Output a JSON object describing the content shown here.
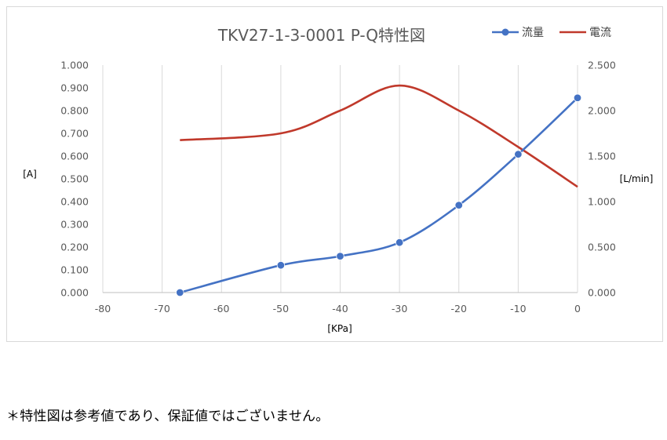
{
  "chart_data": {
    "type": "line",
    "title": "TKV27-1-3-0001 P-Q特性図",
    "xlabel": "[KPa]",
    "ylabel_left": "[A]",
    "ylabel_right": "[L/min]",
    "xlim": [
      -80,
      0
    ],
    "ylim_left": [
      0,
      1.0
    ],
    "ylim_right": [
      0,
      2.5
    ],
    "x_ticks": [
      "-80",
      "-70",
      "-60",
      "-50",
      "-40",
      "-30",
      "-20",
      "-10",
      "0"
    ],
    "y_ticks_left": [
      "0.000",
      "0.100",
      "0.200",
      "0.300",
      "0.400",
      "0.500",
      "0.600",
      "0.700",
      "0.800",
      "0.900",
      "1.000"
    ],
    "y_ticks_right": [
      "0.000",
      "0.500",
      "1.000",
      "1.500",
      "2.000",
      "2.500"
    ],
    "grid": "vertical",
    "legend_position": "top-right",
    "series": [
      {
        "name": "流量",
        "axis": "right",
        "color": "#4472c4",
        "markers": true,
        "x": [
          -67,
          -50,
          -40,
          -30,
          -20,
          -10,
          0
        ],
        "values": [
          0.0,
          0.3,
          0.4,
          0.55,
          0.96,
          1.52,
          2.14
        ]
      },
      {
        "name": "電流",
        "axis": "left",
        "color": "#c0392b",
        "markers": false,
        "x": [
          -67,
          -50,
          -40,
          -30,
          -20,
          -10,
          0
        ],
        "values": [
          0.67,
          0.7,
          0.8,
          0.91,
          0.8,
          0.64,
          0.465
        ]
      }
    ]
  },
  "note": "＊特性図は参考値であり、保証値ではございません。"
}
